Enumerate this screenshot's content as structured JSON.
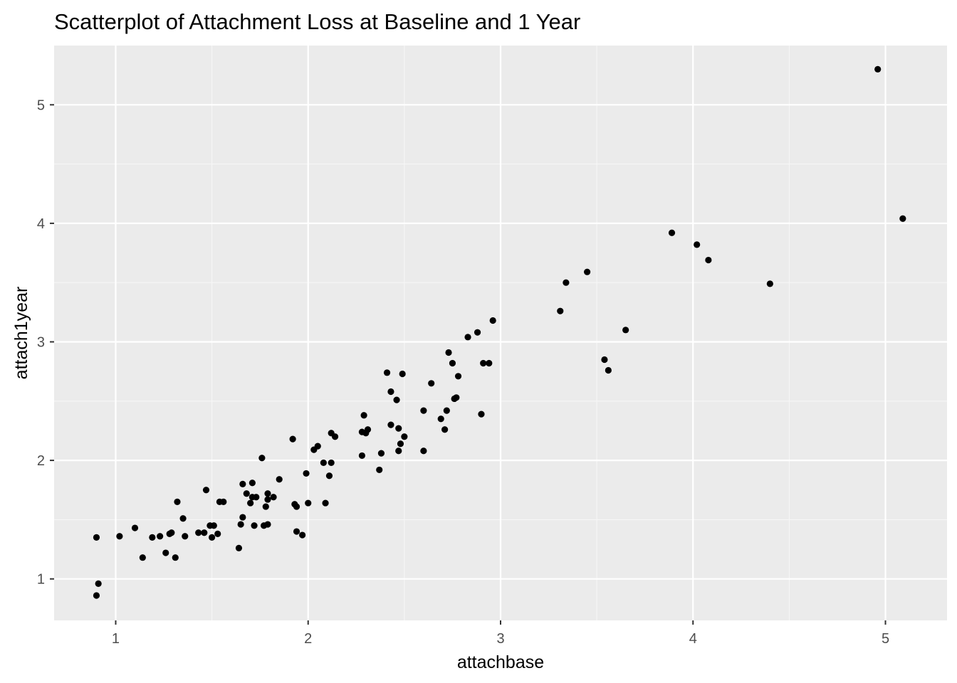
{
  "chart_data": {
    "type": "scatter",
    "title": "Scatterplot of Attachment Loss at Baseline and 1 Year",
    "xlabel": "attachbase",
    "ylabel": "attach1year",
    "xlim": [
      0.68,
      5.32
    ],
    "ylim": [
      0.65,
      5.5
    ],
    "x_ticks": [
      1,
      2,
      3,
      4,
      5
    ],
    "y_ticks": [
      1,
      2,
      3,
      4,
      5
    ],
    "x_tick_labels": [
      "1",
      "2",
      "3",
      "4",
      "5"
    ],
    "y_tick_labels": [
      "1",
      "2",
      "3",
      "4",
      "5"
    ],
    "x_minor": [
      0.5,
      1.5,
      2.5,
      3.5,
      4.5,
      5.5
    ],
    "y_minor": [
      0.5,
      1.5,
      2.5,
      3.5,
      4.5,
      5.5
    ],
    "grid": true,
    "colors": {
      "panel_background": "#ebebeb",
      "grid_major": "#ffffff",
      "grid_minor": "#f6f6f6",
      "point": "#000000",
      "tick": "#333333"
    },
    "points": [
      {
        "x": 0.9,
        "y": 0.86
      },
      {
        "x": 0.91,
        "y": 0.96
      },
      {
        "x": 0.9,
        "y": 1.35
      },
      {
        "x": 1.02,
        "y": 1.36
      },
      {
        "x": 1.1,
        "y": 1.43
      },
      {
        "x": 1.14,
        "y": 1.18
      },
      {
        "x": 1.19,
        "y": 1.35
      },
      {
        "x": 1.23,
        "y": 1.36
      },
      {
        "x": 1.26,
        "y": 1.22
      },
      {
        "x": 1.28,
        "y": 1.38
      },
      {
        "x": 1.29,
        "y": 1.39
      },
      {
        "x": 1.31,
        "y": 1.18
      },
      {
        "x": 1.32,
        "y": 1.65
      },
      {
        "x": 1.35,
        "y": 1.51
      },
      {
        "x": 1.36,
        "y": 1.36
      },
      {
        "x": 1.43,
        "y": 1.39
      },
      {
        "x": 1.46,
        "y": 1.39
      },
      {
        "x": 1.47,
        "y": 1.75
      },
      {
        "x": 1.49,
        "y": 1.45
      },
      {
        "x": 1.5,
        "y": 1.35
      },
      {
        "x": 1.51,
        "y": 1.45
      },
      {
        "x": 1.53,
        "y": 1.38
      },
      {
        "x": 1.54,
        "y": 1.65
      },
      {
        "x": 1.56,
        "y": 1.65
      },
      {
        "x": 1.64,
        "y": 1.26
      },
      {
        "x": 1.65,
        "y": 1.46
      },
      {
        "x": 1.66,
        "y": 1.52
      },
      {
        "x": 1.66,
        "y": 1.8
      },
      {
        "x": 1.68,
        "y": 1.72
      },
      {
        "x": 1.7,
        "y": 1.64
      },
      {
        "x": 1.71,
        "y": 1.69
      },
      {
        "x": 1.71,
        "y": 1.81
      },
      {
        "x": 1.72,
        "y": 1.45
      },
      {
        "x": 1.73,
        "y": 1.69
      },
      {
        "x": 1.76,
        "y": 2.02
      },
      {
        "x": 1.77,
        "y": 1.45
      },
      {
        "x": 1.78,
        "y": 1.61
      },
      {
        "x": 1.79,
        "y": 1.46
      },
      {
        "x": 1.79,
        "y": 1.67
      },
      {
        "x": 1.79,
        "y": 1.72
      },
      {
        "x": 1.82,
        "y": 1.69
      },
      {
        "x": 1.85,
        "y": 1.84
      },
      {
        "x": 1.92,
        "y": 2.18
      },
      {
        "x": 1.93,
        "y": 1.63
      },
      {
        "x": 1.94,
        "y": 1.61
      },
      {
        "x": 1.94,
        "y": 1.4
      },
      {
        "x": 1.97,
        "y": 1.37
      },
      {
        "x": 1.99,
        "y": 1.89
      },
      {
        "x": 2.0,
        "y": 1.64
      },
      {
        "x": 2.03,
        "y": 2.09
      },
      {
        "x": 2.05,
        "y": 2.12
      },
      {
        "x": 2.08,
        "y": 1.98
      },
      {
        "x": 2.09,
        "y": 1.64
      },
      {
        "x": 2.11,
        "y": 1.87
      },
      {
        "x": 2.12,
        "y": 1.98
      },
      {
        "x": 2.12,
        "y": 2.23
      },
      {
        "x": 2.14,
        "y": 2.2
      },
      {
        "x": 2.28,
        "y": 2.04
      },
      {
        "x": 2.28,
        "y": 2.24
      },
      {
        "x": 2.29,
        "y": 2.38
      },
      {
        "x": 2.3,
        "y": 2.23
      },
      {
        "x": 2.31,
        "y": 2.26
      },
      {
        "x": 2.37,
        "y": 1.92
      },
      {
        "x": 2.38,
        "y": 2.06
      },
      {
        "x": 2.41,
        "y": 2.74
      },
      {
        "x": 2.43,
        "y": 2.3
      },
      {
        "x": 2.43,
        "y": 2.58
      },
      {
        "x": 2.46,
        "y": 2.51
      },
      {
        "x": 2.47,
        "y": 2.08
      },
      {
        "x": 2.47,
        "y": 2.27
      },
      {
        "x": 2.48,
        "y": 2.14
      },
      {
        "x": 2.49,
        "y": 2.73
      },
      {
        "x": 2.5,
        "y": 2.2
      },
      {
        "x": 2.6,
        "y": 2.08
      },
      {
        "x": 2.6,
        "y": 2.42
      },
      {
        "x": 2.64,
        "y": 2.65
      },
      {
        "x": 2.69,
        "y": 2.35
      },
      {
        "x": 2.71,
        "y": 2.26
      },
      {
        "x": 2.72,
        "y": 2.42
      },
      {
        "x": 2.73,
        "y": 2.91
      },
      {
        "x": 2.75,
        "y": 2.82
      },
      {
        "x": 2.76,
        "y": 2.52
      },
      {
        "x": 2.77,
        "y": 2.53
      },
      {
        "x": 2.78,
        "y": 2.71
      },
      {
        "x": 2.83,
        "y": 3.04
      },
      {
        "x": 2.88,
        "y": 3.08
      },
      {
        "x": 2.9,
        "y": 2.39
      },
      {
        "x": 2.91,
        "y": 2.82
      },
      {
        "x": 2.94,
        "y": 2.82
      },
      {
        "x": 2.96,
        "y": 3.18
      },
      {
        "x": 3.31,
        "y": 3.26
      },
      {
        "x": 3.34,
        "y": 3.5
      },
      {
        "x": 3.45,
        "y": 3.59
      },
      {
        "x": 3.54,
        "y": 2.85
      },
      {
        "x": 3.56,
        "y": 2.76
      },
      {
        "x": 3.65,
        "y": 3.1
      },
      {
        "x": 3.89,
        "y": 3.92
      },
      {
        "x": 4.02,
        "y": 3.82
      },
      {
        "x": 4.08,
        "y": 3.69
      },
      {
        "x": 4.4,
        "y": 3.49
      },
      {
        "x": 4.96,
        "y": 5.3
      },
      {
        "x": 5.09,
        "y": 4.04
      }
    ]
  }
}
